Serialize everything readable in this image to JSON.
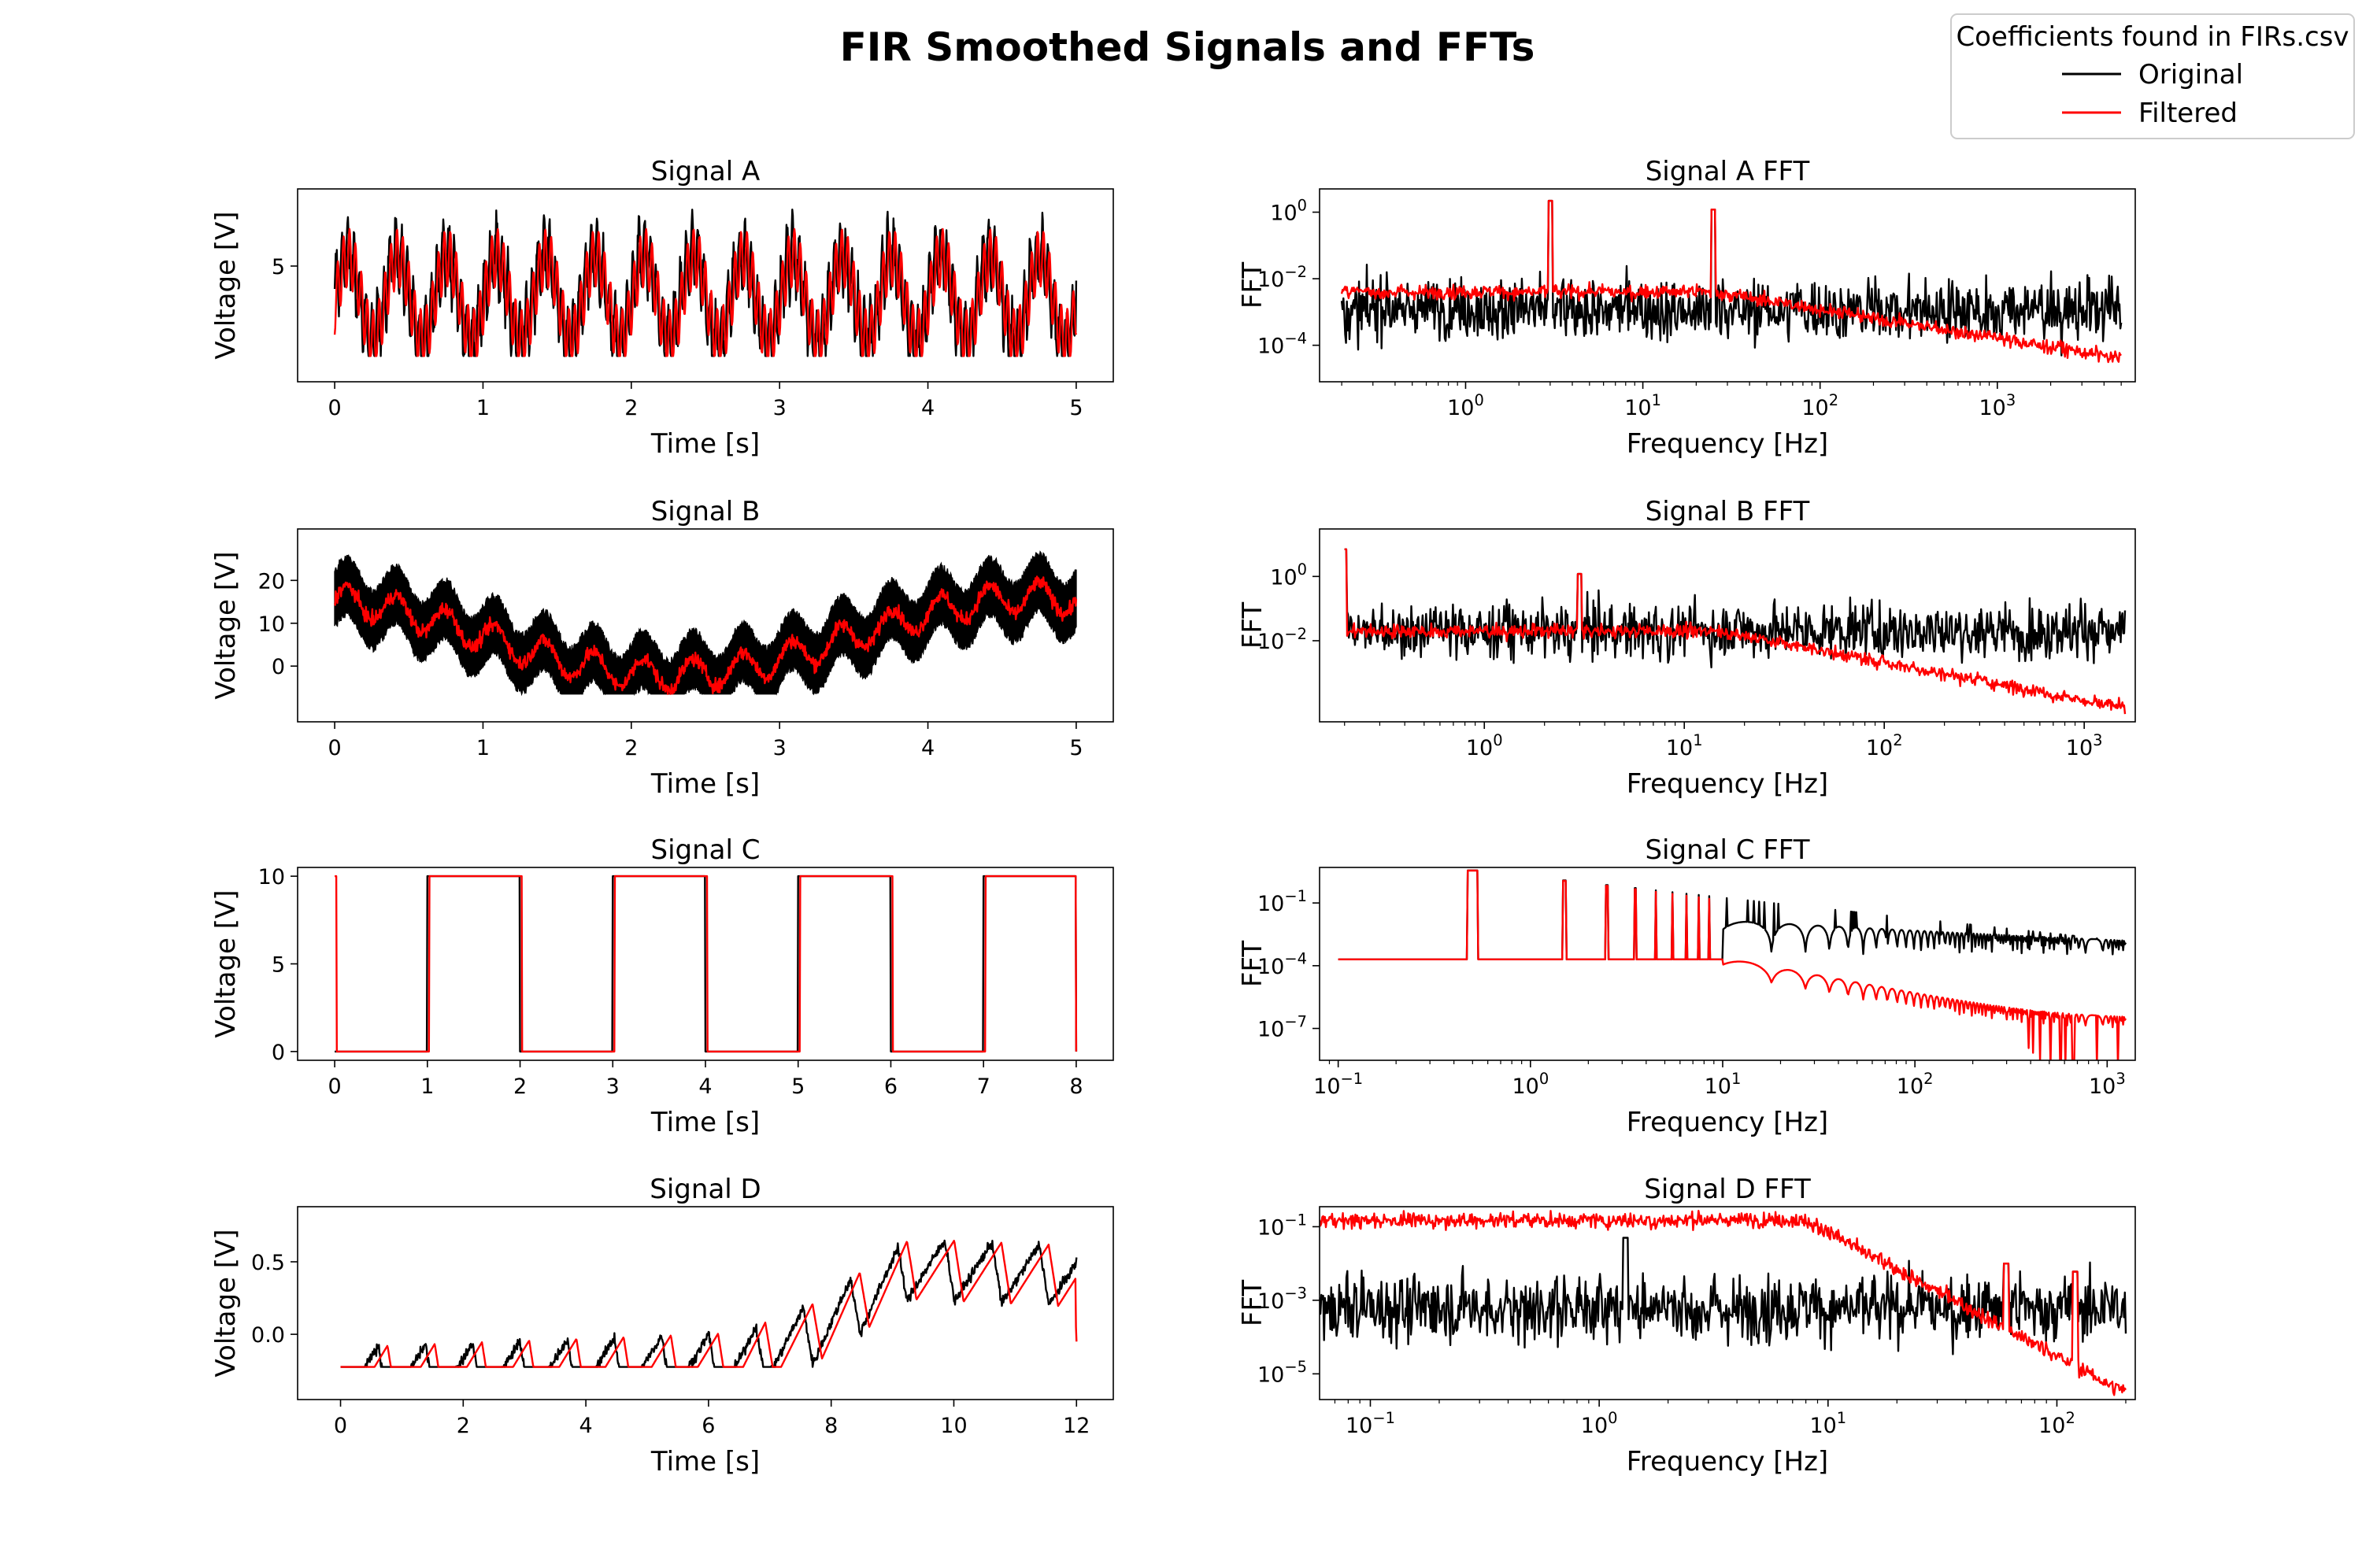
{
  "figure": {
    "title": "FIR Smoothed Signals and FFTs",
    "legend": {
      "title": "Coefficients found in FIRs.csv",
      "placement": "top-right",
      "entries": [
        {
          "label": "Original",
          "color": "#000000"
        },
        {
          "label": "Filtered",
          "color": "#ff0000"
        }
      ]
    }
  },
  "chart_data": [
    {
      "type": "line",
      "title": "Signal A",
      "xlabel": "Time [s]",
      "ylabel": "Voltage [V]",
      "xlim": [
        -0.25,
        5.25
      ],
      "ylim": [
        -4,
        11
      ],
      "xticks": [
        0,
        1,
        2,
        3,
        4,
        5
      ],
      "xtick_labels": [
        "0",
        "1",
        "2",
        "3",
        "4",
        "5"
      ],
      "yticks": [
        5
      ],
      "ytick_labels": [
        "5"
      ],
      "signal": {
        "kind": "sines",
        "t_end": 5,
        "offset": 2.5,
        "components": [
          {
            "amp": 3.5,
            "freq": 3
          },
          {
            "amp": 2.5,
            "freq": 25
          }
        ],
        "noise": 1.0,
        "filter_window": 0.01
      },
      "series": [
        {
          "name": "Original",
          "color": "#000000"
        },
        {
          "name": "Filtered",
          "color": "#ff0000"
        }
      ]
    },
    {
      "type": "line",
      "title": "Signal A FFT",
      "xlabel": "Frequency [Hz]",
      "ylabel": "FFT",
      "xscale": "log",
      "yscale": "log",
      "xlim": [
        0.15,
        6000
      ],
      "ylim": [
        8e-06,
        5
      ],
      "xticks": [
        1,
        10,
        100,
        1000
      ],
      "xtick_labels": [
        "10^0",
        "10^1",
        "10^2",
        "10^3"
      ],
      "yticks": [
        0.0001,
        0.01,
        1
      ],
      "ytick_labels": [
        "10^-4",
        "10^-2",
        "10^0"
      ],
      "spectrum": {
        "f_min": 0.2,
        "f_max": 5000,
        "original_level": 0.0012,
        "filtered_start": 0.004,
        "filtered_end": 4e-05,
        "rolloff_start": 25,
        "spread": 1.3,
        "peaks": [
          {
            "f": 3,
            "amp": 2.2
          },
          {
            "f": 25,
            "amp": 1.2
          }
        ]
      },
      "series": [
        {
          "name": "Original",
          "color": "#000000"
        },
        {
          "name": "Filtered",
          "color": "#ff0000"
        }
      ]
    },
    {
      "type": "line",
      "title": "Signal B",
      "xlabel": "Time [s]",
      "ylabel": "Voltage [V]",
      "xlim": [
        -0.25,
        5.25
      ],
      "ylim": [
        -13,
        32
      ],
      "xticks": [
        0,
        1,
        2,
        3,
        4,
        5
      ],
      "xtick_labels": [
        "0",
        "1",
        "2",
        "3",
        "4",
        "5"
      ],
      "yticks": [
        0,
        10,
        20
      ],
      "ytick_labels": [
        "0",
        "10",
        "20"
      ],
      "signal": {
        "kind": "drift",
        "t_end": 5,
        "offset": 7,
        "components": [
          {
            "amp": 9,
            "freq": 0.2,
            "phase": 0.3
          },
          {
            "amp": 3.5,
            "freq": 3
          }
        ],
        "noise_band": 13,
        "filter_noise": 1.2
      },
      "series": [
        {
          "name": "Original",
          "color": "#000000"
        },
        {
          "name": "Filtered",
          "color": "#ff0000"
        }
      ]
    },
    {
      "type": "line",
      "title": "Signal B FFT",
      "xlabel": "Frequency [Hz]",
      "ylabel": "FFT",
      "xscale": "log",
      "yscale": "log",
      "xlim": [
        0.15,
        1800
      ],
      "ylim": [
        3e-05,
        30
      ],
      "xticks": [
        1,
        10,
        100,
        1000
      ],
      "xtick_labels": [
        "10^0",
        "10^1",
        "10^2",
        "10^3"
      ],
      "yticks": [
        0.01,
        1
      ],
      "ytick_labels": [
        "10^-2",
        "10^0"
      ],
      "spectrum": {
        "f_min": 0.2,
        "f_max": 1600,
        "original_level": 0.02,
        "filtered_start": 0.02,
        "filtered_end": 8e-05,
        "rolloff_start": 15,
        "spread": 1.2,
        "peaks": [
          {
            "f": 0.2,
            "amp": 7
          },
          {
            "f": 3,
            "amp": 1.2
          }
        ]
      },
      "series": [
        {
          "name": "Original",
          "color": "#000000"
        },
        {
          "name": "Filtered",
          "color": "#ff0000"
        }
      ]
    },
    {
      "type": "line",
      "title": "Signal C",
      "xlabel": "Time [s]",
      "ylabel": "Voltage [V]",
      "xlim": [
        -0.4,
        8.4
      ],
      "ylim": [
        -0.5,
        10.5
      ],
      "xticks": [
        0,
        1,
        2,
        3,
        4,
        5,
        6,
        7,
        8
      ],
      "xtick_labels": [
        "0",
        "1",
        "2",
        "3",
        "4",
        "5",
        "6",
        "7",
        "8"
      ],
      "yticks": [
        0,
        5,
        10
      ],
      "ytick_labels": [
        "0",
        "5",
        "10"
      ],
      "signal": {
        "kind": "square",
        "t_end": 8,
        "period": 2,
        "low": 0,
        "high": 10,
        "filter_lag": 0.02
      },
      "series": [
        {
          "name": "Original",
          "color": "#000000"
        },
        {
          "name": "Filtered",
          "color": "#ff0000"
        }
      ]
    },
    {
      "type": "line",
      "title": "Signal C FFT",
      "xlabel": "Frequency [Hz]",
      "ylabel": "FFT",
      "xscale": "log",
      "yscale": "log",
      "xlim": [
        0.08,
        1400
      ],
      "ylim": [
        3e-09,
        5
      ],
      "xticks": [
        0.1,
        1,
        10,
        100,
        1000
      ],
      "xtick_labels": [
        "10^-1",
        "10^0",
        "10^1",
        "10^2",
        "10^3"
      ],
      "yticks": [
        1e-07,
        0.0001,
        0.1
      ],
      "ytick_labels": [
        "10^-7",
        "10^-4",
        "10^-1"
      ],
      "spectrum": {
        "kind": "square_harmonics",
        "f_min": 0.1,
        "f_max": 1250,
        "fundamental": 0.5,
        "fundamental_amp": 3.6,
        "floor": 0.0002,
        "harmonic_end": 0.00035,
        "filtered_end": 2e-07
      },
      "series": [
        {
          "name": "Original",
          "color": "#000000"
        },
        {
          "name": "Filtered",
          "color": "#ff0000"
        }
      ]
    },
    {
      "type": "line",
      "title": "Signal D",
      "xlabel": "Time [s]",
      "ylabel": "Voltage [V]",
      "xlim": [
        -0.7,
        12.6
      ],
      "ylim": [
        -0.45,
        0.88
      ],
      "xticks": [
        0,
        2,
        4,
        6,
        8,
        10,
        12
      ],
      "xtick_labels": [
        "0",
        "2",
        "4",
        "6",
        "8",
        "10",
        "12"
      ],
      "yticks": [
        0,
        0.5
      ],
      "ytick_labels": [
        "0.0",
        "0.5"
      ],
      "signal": {
        "kind": "sawtooth",
        "t_end": 12,
        "period": 0.77,
        "base": [
          [
            0,
            -0.3
          ],
          [
            6.5,
            -0.2
          ],
          [
            7.7,
            0.0
          ],
          [
            9.3,
            0.45
          ],
          [
            12,
            0.4
          ]
        ],
        "amp": 0.42,
        "noise": 0.025,
        "filter_lag": 0.15
      },
      "series": [
        {
          "name": "Original",
          "color": "#000000"
        },
        {
          "name": "Filtered",
          "color": "#ff0000"
        }
      ]
    },
    {
      "type": "line",
      "title": "Signal D FFT",
      "xlabel": "Frequency [Hz]",
      "ylabel": "FFT",
      "xscale": "log",
      "yscale": "log",
      "xlim": [
        0.06,
        220
      ],
      "ylim": [
        2e-06,
        0.35
      ],
      "xticks": [
        0.1,
        1,
        10,
        100
      ],
      "xtick_labels": [
        "10^-1",
        "10^0",
        "10^1",
        "10^2"
      ],
      "yticks": [
        1e-05,
        0.001,
        0.1
      ],
      "ytick_labels": [
        "10^-5",
        "10^-3",
        "10^-1"
      ],
      "spectrum": {
        "f_min": 0.06,
        "f_max": 200,
        "original_level": 0.0006,
        "filtered_start": 0.15,
        "filtered_end": 3e-06,
        "rolloff_start": 8,
        "spread": 1.3,
        "peaks": [
          {
            "f": 1.3,
            "amp": 0.05
          },
          {
            "f": 60,
            "amp": 0.01
          },
          {
            "f": 120,
            "amp": 0.006
          }
        ]
      },
      "series": [
        {
          "name": "Original",
          "color": "#000000"
        },
        {
          "name": "Filtered",
          "color": "#ff0000"
        }
      ]
    }
  ]
}
